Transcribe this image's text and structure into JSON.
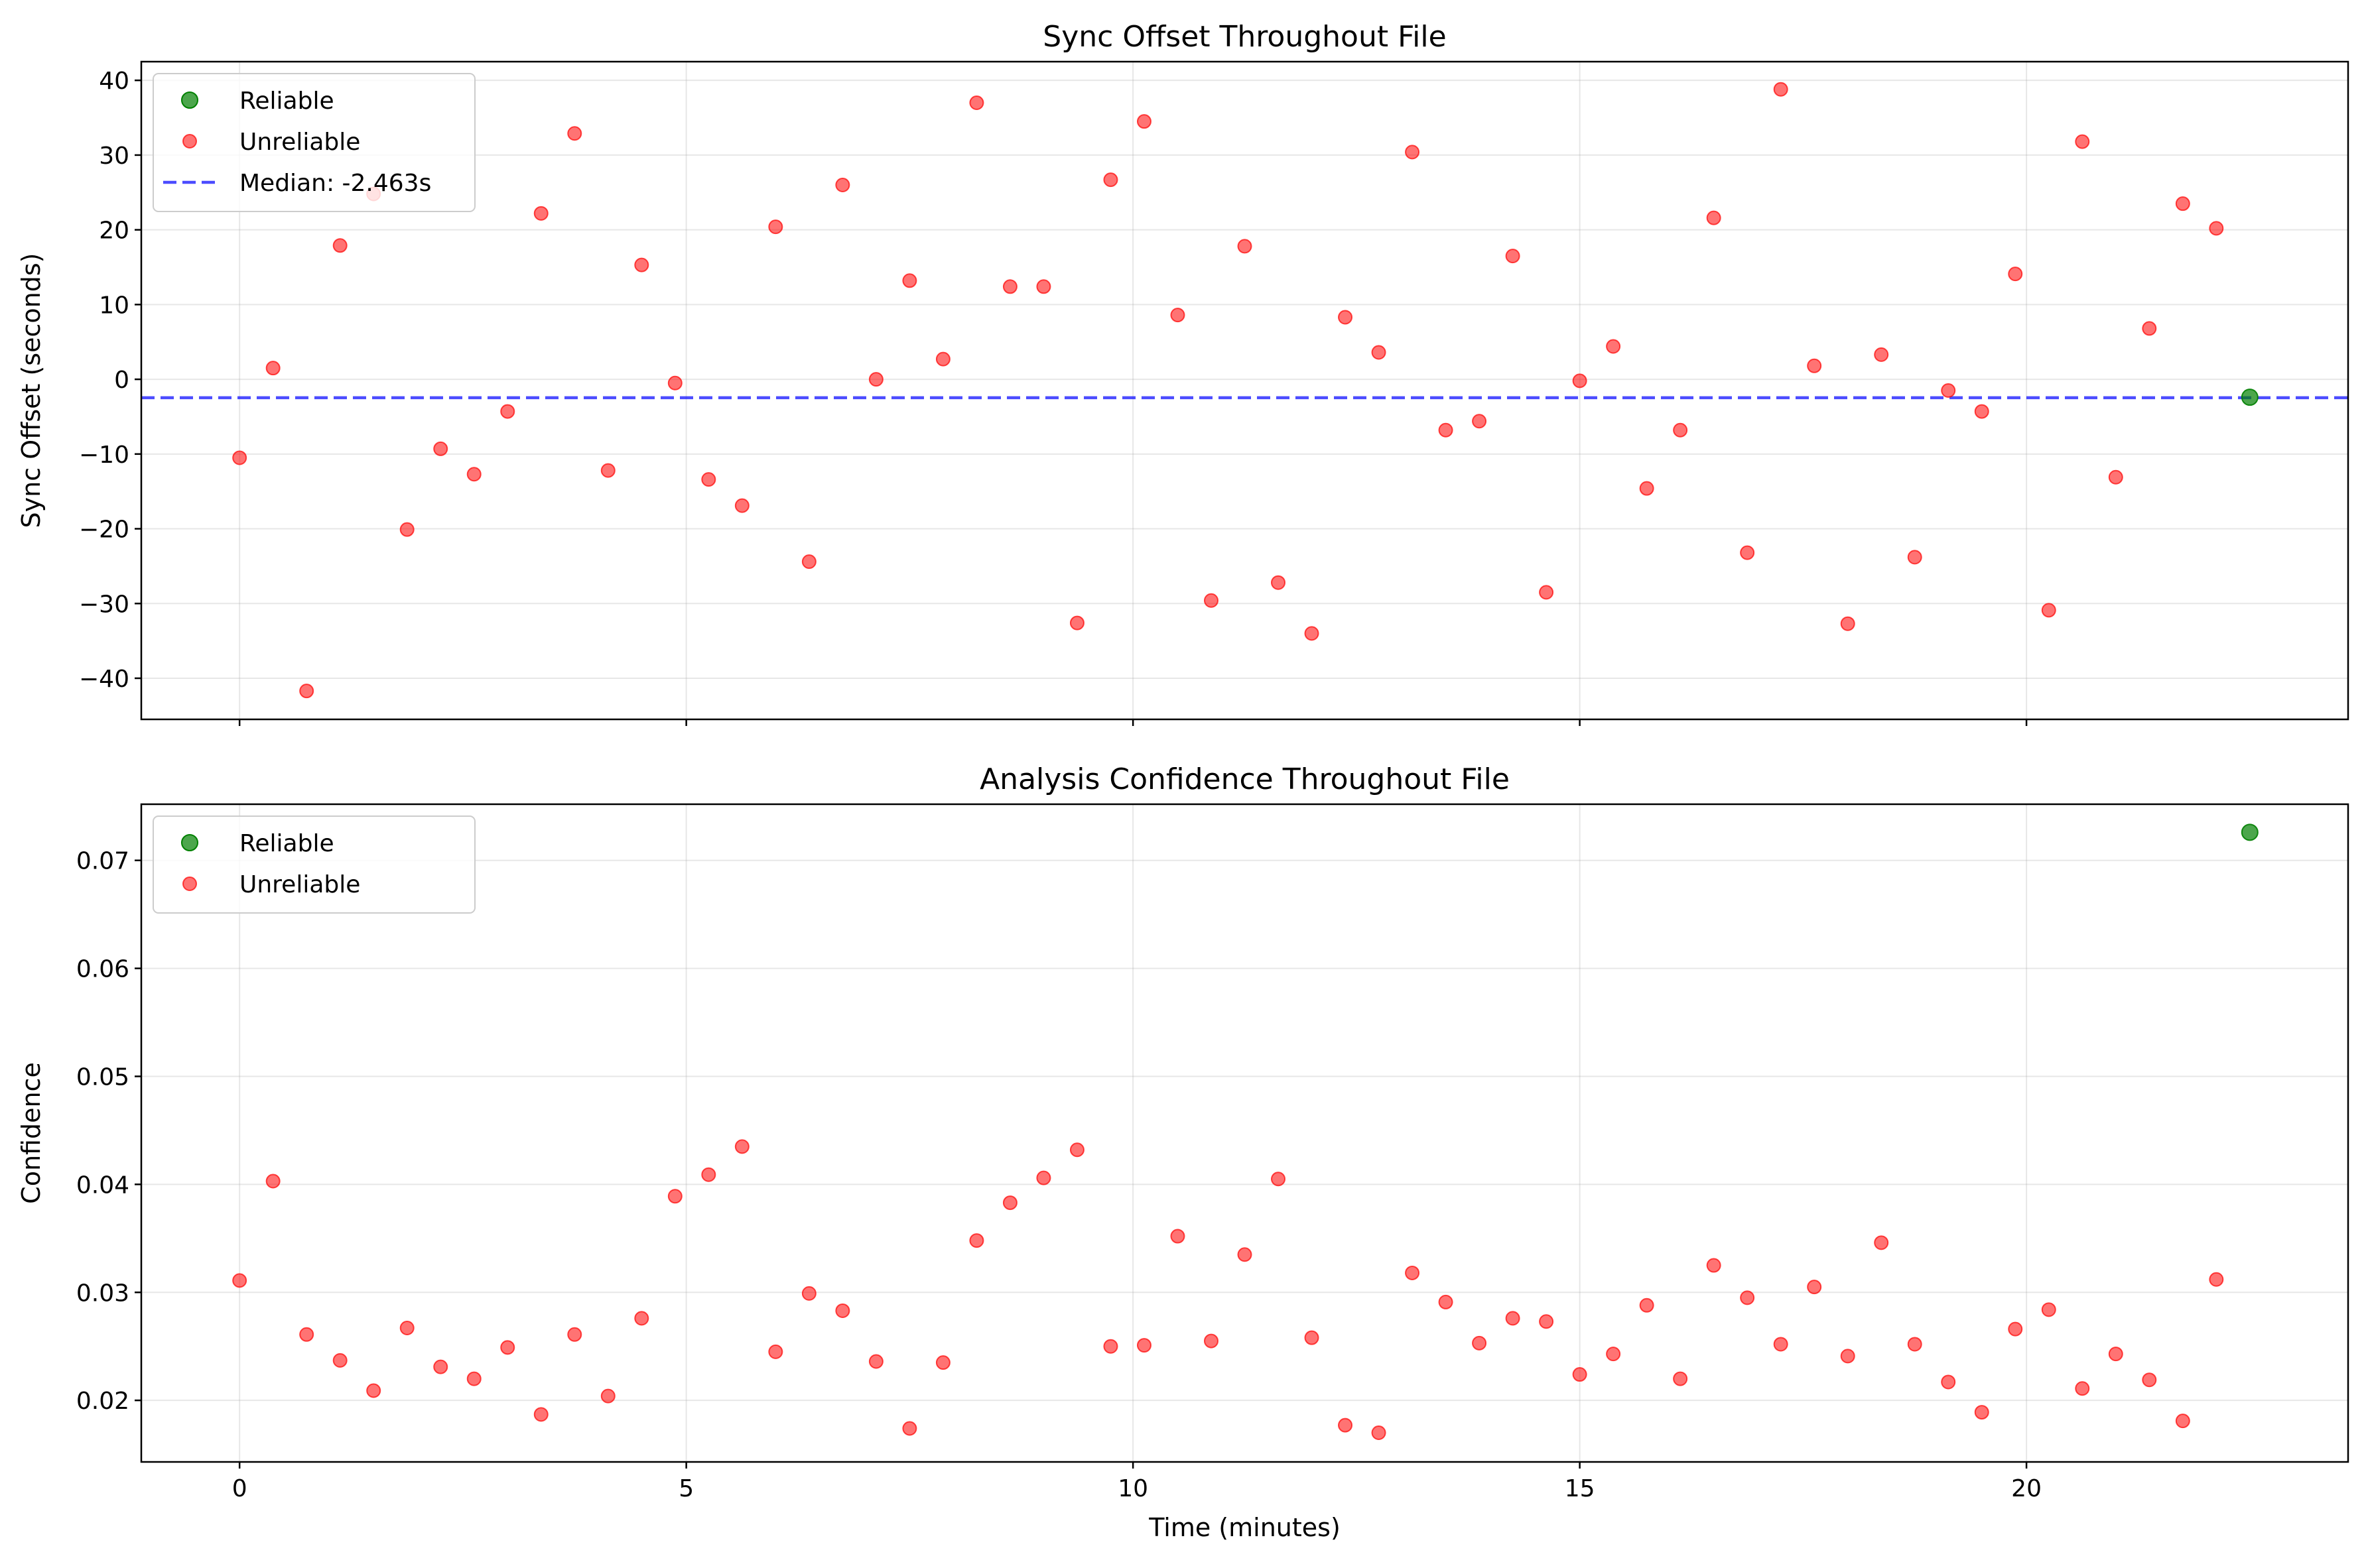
{
  "chart_data": [
    {
      "type": "scatter",
      "title": "Sync Offset Throughout File",
      "xlabel": "",
      "ylabel": "Sync Offset (seconds)",
      "xlim": [
        -1.1,
        23.6
      ],
      "ylim": [
        -45.5,
        42.5
      ],
      "xticks": [
        0,
        5,
        10,
        15,
        20
      ],
      "yticks": [
        -40,
        -30,
        -20,
        -10,
        0,
        10,
        20,
        30,
        40
      ],
      "ytick_labels": [
        "−40",
        "−30",
        "−20",
        "−10",
        "0",
        "10",
        "20",
        "30",
        "40"
      ],
      "show_x_tick_labels": false,
      "grid": true,
      "legend_position": "top-left",
      "legend": [
        "Reliable",
        "Unreliable",
        "Median: -2.463s"
      ],
      "median_line": {
        "label": "Median: -2.463s",
        "value": -2.463,
        "color": "#0000ff"
      },
      "series": [
        {
          "name": "Reliable",
          "color": "#008000",
          "x": [
            22.5
          ],
          "y": [
            -2.4
          ]
        },
        {
          "name": "Unreliable",
          "color": "#ff0000",
          "x": [
            0,
            0.375,
            0.75,
            1.125,
            1.5,
            1.875,
            2.25,
            2.625,
            3.0,
            3.375,
            3.75,
            4.125,
            4.5,
            4.875,
            5.25,
            5.625,
            6.0,
            6.375,
            6.75,
            7.125,
            7.5,
            7.875,
            8.25,
            8.625,
            9.0,
            9.375,
            9.75,
            10.125,
            10.5,
            10.875,
            11.25,
            11.625,
            12.0,
            12.375,
            12.75,
            13.125,
            13.5,
            13.875,
            14.25,
            14.625,
            15.0,
            15.375,
            15.75,
            16.125,
            16.5,
            16.875,
            17.25,
            17.625,
            18.0,
            18.375,
            18.75,
            19.125,
            19.5,
            19.875,
            20.25,
            20.625,
            21.0,
            21.375,
            21.75,
            22.125
          ],
          "y": [
            -10.5,
            1.5,
            -41.7,
            17.9,
            24.8,
            -20.1,
            -9.3,
            -12.7,
            -4.3,
            22.2,
            32.9,
            -12.2,
            15.3,
            -0.5,
            -13.4,
            -16.9,
            20.4,
            -24.4,
            26.0,
            0.0,
            13.2,
            2.7,
            37.0,
            12.4,
            12.4,
            -32.6,
            26.7,
            34.5,
            8.6,
            -29.6,
            17.8,
            -27.2,
            -34.0,
            8.3,
            3.6,
            30.4,
            -6.8,
            -5.6,
            16.5,
            -28.5,
            -0.2,
            4.4,
            -14.6,
            -6.8,
            21.6,
            -23.2,
            38.8,
            1.8,
            -32.7,
            3.3,
            -23.8,
            -1.5,
            -4.3,
            14.1,
            -30.9,
            31.8,
            -13.1,
            6.8,
            23.5,
            20.2
          ]
        }
      ]
    },
    {
      "type": "scatter",
      "title": "Analysis Confidence Throughout File",
      "xlabel": "Time (minutes)",
      "ylabel": "Confidence",
      "xlim": [
        -1.1,
        23.6
      ],
      "ylim": [
        0.0143,
        0.0752
      ],
      "xticks": [
        0,
        5,
        10,
        15,
        20
      ],
      "yticks": [
        0.02,
        0.03,
        0.04,
        0.05,
        0.06,
        0.07
      ],
      "ytick_labels": [
        "0.02",
        "0.03",
        "0.04",
        "0.05",
        "0.06",
        "0.07"
      ],
      "xtick_labels": [
        "0",
        "5",
        "10",
        "15",
        "20"
      ],
      "show_x_tick_labels": true,
      "grid": true,
      "legend_position": "top-left",
      "legend": [
        "Reliable",
        "Unreliable"
      ],
      "series": [
        {
          "name": "Reliable",
          "color": "#008000",
          "x": [
            22.5
          ],
          "y": [
            0.0726
          ]
        },
        {
          "name": "Unreliable",
          "color": "#ff0000",
          "x": [
            0,
            0.375,
            0.75,
            1.125,
            1.5,
            1.875,
            2.25,
            2.625,
            3.0,
            3.375,
            3.75,
            4.125,
            4.5,
            4.875,
            5.25,
            5.625,
            6.0,
            6.375,
            6.75,
            7.125,
            7.5,
            7.875,
            8.25,
            8.625,
            9.0,
            9.375,
            9.75,
            10.125,
            10.5,
            10.875,
            11.25,
            11.625,
            12.0,
            12.375,
            12.75,
            13.125,
            13.5,
            13.875,
            14.25,
            14.625,
            15.0,
            15.375,
            15.75,
            16.125,
            16.5,
            16.875,
            17.25,
            17.625,
            18.0,
            18.375,
            18.75,
            19.125,
            19.5,
            19.875,
            20.25,
            20.625,
            21.0,
            21.375,
            21.75,
            22.125
          ],
          "y": [
            0.0311,
            0.0403,
            0.0261,
            0.0237,
            0.0209,
            0.0267,
            0.0231,
            0.022,
            0.0249,
            0.0187,
            0.0261,
            0.0204,
            0.0276,
            0.0389,
            0.0409,
            0.0435,
            0.0245,
            0.0299,
            0.0283,
            0.0236,
            0.0174,
            0.0235,
            0.0348,
            0.0383,
            0.0406,
            0.0432,
            0.025,
            0.0251,
            0.0352,
            0.0255,
            0.0335,
            0.0405,
            0.0258,
            0.0177,
            0.017,
            0.0318,
            0.0291,
            0.0253,
            0.0276,
            0.0273,
            0.0224,
            0.0243,
            0.0288,
            0.022,
            0.0325,
            0.0295,
            0.0252,
            0.0305,
            0.0241,
            0.0346,
            0.0252,
            0.0217,
            0.0189,
            0.0266,
            0.0284,
            0.0211,
            0.0243,
            0.0219,
            0.0181,
            0.0312
          ]
        }
      ]
    }
  ]
}
